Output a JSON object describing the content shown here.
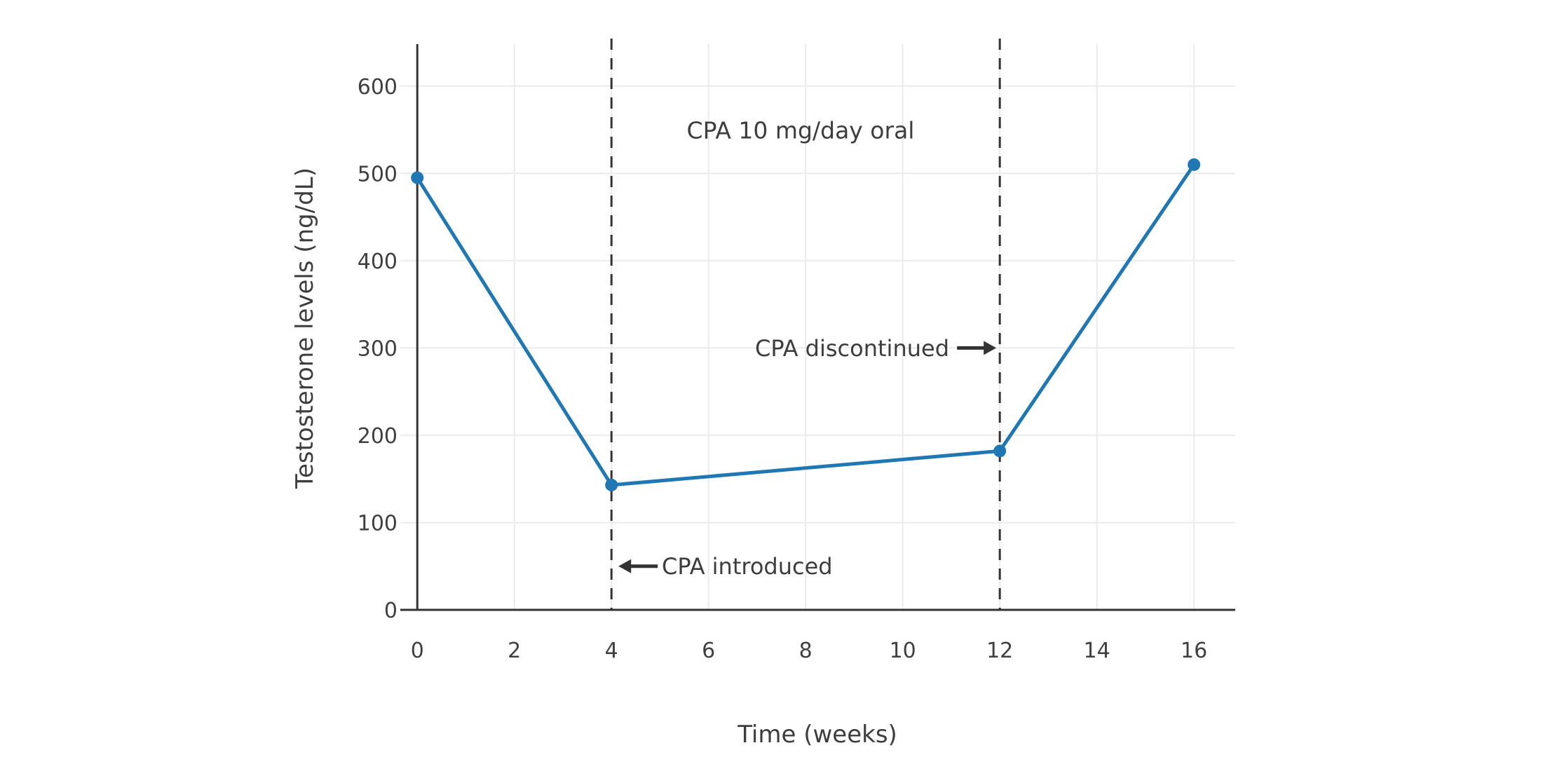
{
  "chart_data": {
    "type": "line",
    "title": "",
    "x": [
      0,
      4,
      12,
      16
    ],
    "y": [
      495,
      143,
      182,
      510
    ],
    "series": [
      {
        "name": "Testosterone levels",
        "values": [
          495,
          143,
          182,
          510
        ]
      }
    ],
    "xlabel": "Time (weeks)",
    "ylabel": "Testosterone levels (ng/dL)",
    "xticks": [
      0,
      2,
      4,
      6,
      8,
      10,
      12,
      14,
      16
    ],
    "yticks": [
      0,
      100,
      200,
      300,
      400,
      500,
      600
    ],
    "xlim": [
      -0.35,
      16.85
    ],
    "ylim": [
      0,
      648
    ],
    "grid": true,
    "legend": "none",
    "line_color": "#1f77b4",
    "marker_color": "#1f77b4",
    "axis_color": "#333333",
    "grid_color": "#ebebeb",
    "text_color": "#404040",
    "annotation_color": "#333333",
    "vlines": [
      {
        "x": 4,
        "style": "dashed",
        "color": "#333333"
      },
      {
        "x": 12,
        "style": "dashed",
        "color": "#333333"
      }
    ],
    "annotations": [
      {
        "id": "dose",
        "text": "CPA 10 mg/day oral",
        "x": 7.9,
        "y": 552,
        "arrow": "none"
      },
      {
        "id": "discontinued",
        "text": "CPA discontinued",
        "x": 12,
        "y": 300,
        "arrow": "right"
      },
      {
        "id": "introduced",
        "text": "CPA introduced",
        "x": 4,
        "y": 50,
        "arrow": "left"
      }
    ]
  }
}
